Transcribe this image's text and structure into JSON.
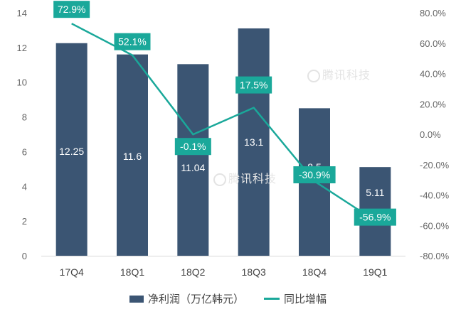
{
  "chart_data": {
    "type": "bar",
    "categories": [
      "17Q4",
      "18Q1",
      "18Q2",
      "18Q3",
      "18Q4",
      "19Q1"
    ],
    "series": [
      {
        "name": "净利润（万亿韩元）",
        "type": "bar",
        "axis": "left",
        "values": [
          12.25,
          11.6,
          11.04,
          13.1,
          8.5,
          5.11
        ],
        "labels": [
          "12.25",
          "11.6",
          "11.04",
          "13.1",
          "8.5",
          "5.11"
        ],
        "color": "#3b5573"
      },
      {
        "name": "同比增幅",
        "type": "line",
        "axis": "right",
        "values": [
          72.9,
          52.1,
          -0.1,
          17.5,
          -30.9,
          -56.9
        ],
        "labels": [
          "72.9%",
          "52.1%",
          "-0.1%",
          "17.5%",
          "-30.9%",
          "-56.9%"
        ],
        "color": "#1aa89a"
      }
    ],
    "y_left": {
      "ylim": [
        0,
        14
      ],
      "ticks": [
        "0",
        "2",
        "4",
        "6",
        "8",
        "10",
        "12",
        "14"
      ]
    },
    "y_right": {
      "ylim": [
        -80,
        80
      ],
      "ticks": [
        "-80.0%",
        "-60.0%",
        "-40.0%",
        "-20.0%",
        "0.0%",
        "20.0%",
        "40.0%",
        "60.0%",
        "80.0%"
      ]
    },
    "grid": false,
    "legend_position": "bottom"
  },
  "watermark": "腾讯科技"
}
